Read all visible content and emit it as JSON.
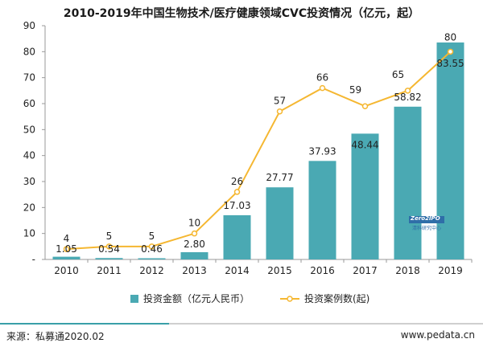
{
  "chart_data": {
    "type": "bar",
    "title": "2010-2019年中国生物技术/医疗健康领域CVC投资情况（亿元，起）",
    "categories": [
      "2010",
      "2011",
      "2012",
      "2013",
      "2014",
      "2015",
      "2016",
      "2017",
      "2018",
      "2019"
    ],
    "series": [
      {
        "name": "投资金额（亿元人民币）",
        "type": "bar",
        "color": "#4aa9b3",
        "values": [
          1.05,
          0.54,
          0.46,
          2.8,
          17.03,
          27.77,
          37.93,
          48.44,
          58.82,
          83.55
        ],
        "labels": [
          "1.05",
          "0.54",
          "0.46",
          "2.80",
          "17.03",
          "27.77",
          "37.93",
          "48.44",
          "58.82",
          "83.55"
        ]
      },
      {
        "name": "投资案例数(起)",
        "type": "line",
        "color": "#f5b731",
        "values": [
          4,
          5,
          5,
          10,
          26,
          57,
          66,
          59,
          65,
          80
        ],
        "labels": [
          "4",
          "5",
          "5",
          "10",
          "26",
          "57",
          "66",
          "59",
          "65",
          "80"
        ]
      }
    ],
    "yticks": [
      "-",
      "10",
      "20",
      "30",
      "40",
      "50",
      "60",
      "70",
      "80",
      "90"
    ],
    "ylim": [
      0,
      90
    ],
    "grid": false,
    "legend": "bottom-center"
  },
  "footer": {
    "source": "来源：私募通2020.02",
    "site": "www.pedata.cn"
  },
  "watermark": {
    "brand": "Zero2IPO",
    "subtitle": "清科研究中心"
  }
}
